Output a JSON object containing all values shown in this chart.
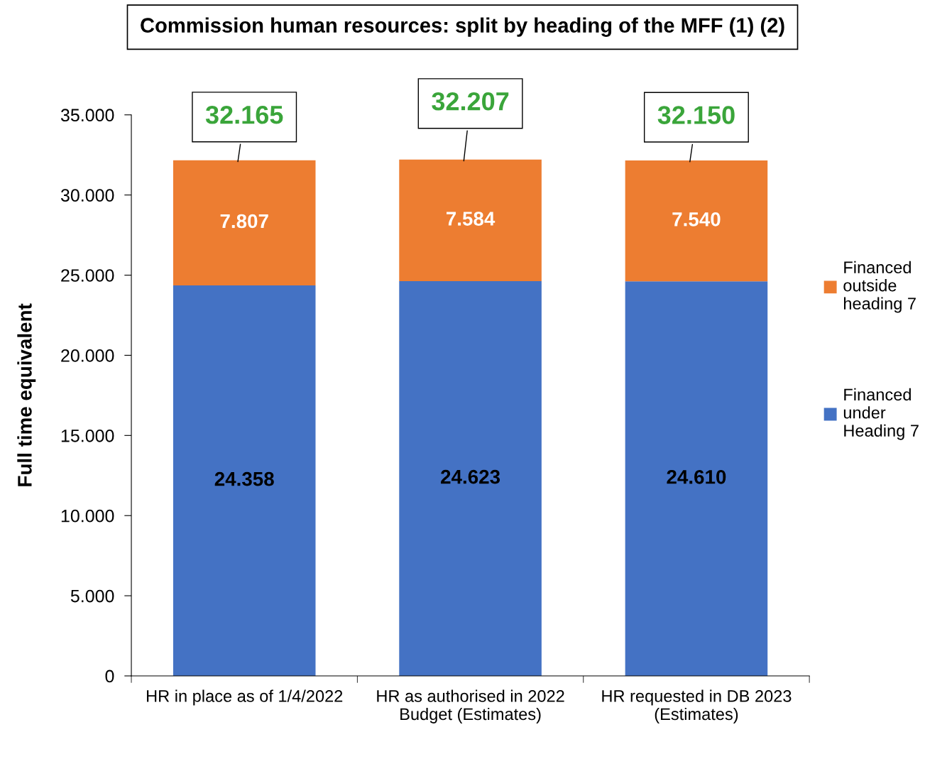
{
  "chart_data": {
    "type": "bar",
    "title": "Commission human resources: split by heading of the MFF (1) (2)",
    "ylabel": "Full time equivalent",
    "categories": [
      "HR in place as of 1/4/2022",
      "HR as authorised in 2022\nBudget (Estimates)",
      "HR requested in DB 2023\n(Estimates)"
    ],
    "stacked": true,
    "series": [
      {
        "name": "Financed\nunder\nHeading 7",
        "color": "#4472c4",
        "values": [
          24358,
          24623,
          24610
        ],
        "value_labels": [
          "24.358",
          "24.623",
          "24.610"
        ]
      },
      {
        "name": "Financed\noutside\nheading 7",
        "color": "#ed7d31",
        "values": [
          7807,
          7584,
          7540
        ],
        "value_labels": [
          "7.807",
          "7.584",
          "7.540"
        ]
      }
    ],
    "totals": [
      "32.165",
      "32.207",
      "32.150"
    ],
    "ylim": [
      0,
      35000
    ],
    "yticks": [
      0,
      {
        "value": 5000,
        "label": "5.000"
      },
      {
        "value": 10000,
        "label": "10.000"
      },
      {
        "value": 15000,
        "label": "15.000"
      },
      {
        "value": 20000,
        "label": "20.000"
      },
      {
        "value": 25000,
        "label": "25.000"
      },
      {
        "value": 30000,
        "label": "30.000"
      },
      {
        "value": 35000,
        "label": "35.000"
      }
    ],
    "grid": false,
    "legend": "right"
  }
}
